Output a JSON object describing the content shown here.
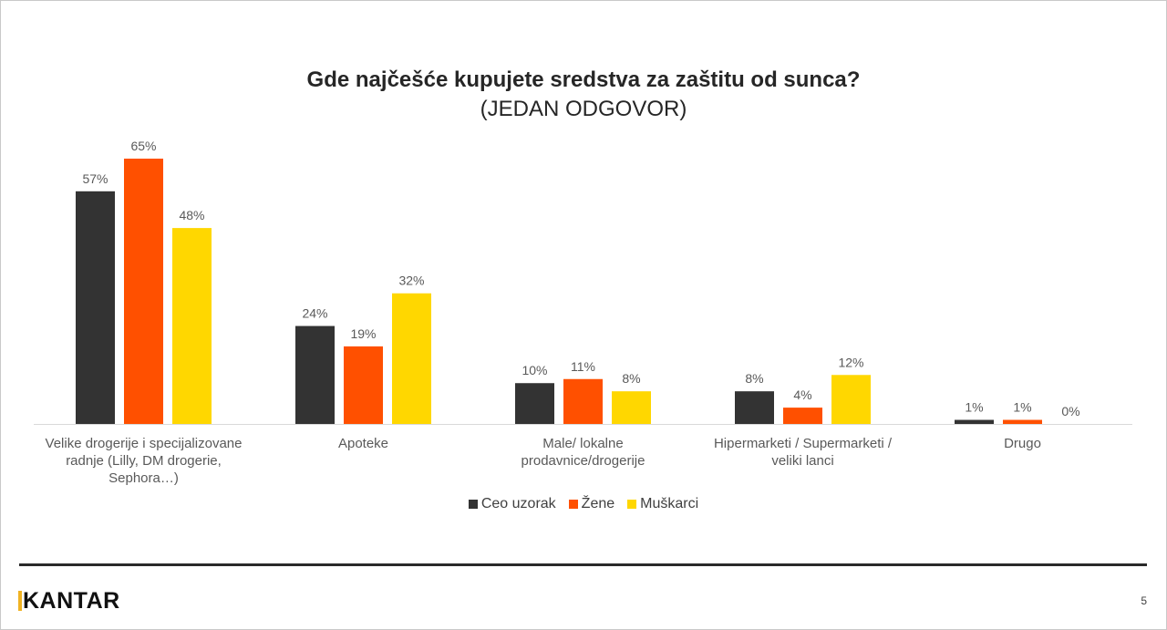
{
  "slide": {
    "title": "Gde najčešće kupujete sredstva za zaštitu od sunca?",
    "subtitle": "(JEDAN ODGOVOR)",
    "logo_text": "KANTAR",
    "page_number": "5"
  },
  "chart_data": {
    "type": "bar",
    "title": "Gde najčešće kupujete sredstva za zaštitu od sunca?",
    "subtitle": "(JEDAN ODGOVOR)",
    "categories": [
      [
        "Velike drogerije i specijalizovane",
        "radnje (Lilly, DM drogerie,",
        "Sephora…)"
      ],
      [
        "Apoteke"
      ],
      [
        "Male/ lokalne",
        "prodavnice/drogerije"
      ],
      [
        "Hipermarketi / Supermarketi /",
        "veliki lanci"
      ],
      [
        "Drugo"
      ]
    ],
    "series": [
      {
        "name": "Ceo uzorak",
        "color": "#333333",
        "values": [
          57,
          24,
          10,
          8,
          1
        ],
        "labels": [
          "57%",
          "24%",
          "10%",
          "8%",
          "1%"
        ]
      },
      {
        "name": "Žene",
        "color": "#ff5000",
        "values": [
          65,
          19,
          11,
          4,
          1
        ],
        "labels": [
          "65%",
          "19%",
          "11%",
          "4%",
          "1%"
        ]
      },
      {
        "name": "Muškarci",
        "color": "#ffd700",
        "values": [
          48,
          32,
          8,
          12,
          0
        ],
        "labels": [
          "48%",
          "32%",
          "8%",
          "12%",
          "0%"
        ]
      }
    ],
    "ylim": [
      0,
      65
    ],
    "grid": false,
    "legend": "bottom",
    "xlabel": "",
    "ylabel": ""
  }
}
